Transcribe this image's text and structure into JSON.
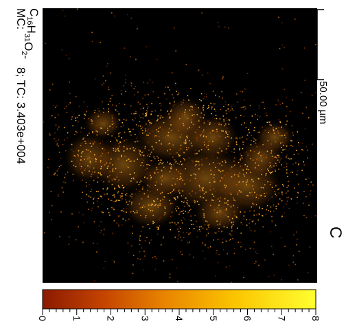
{
  "image": {
    "formula_base": "C",
    "formula_parts": [
      {
        "text": "C",
        "sub": "16"
      },
      {
        "text": "H",
        "sub": "31"
      },
      {
        "text": "O",
        "sub": "2"
      }
    ],
    "formula_charge": "-",
    "mc_label": "MC:",
    "mc_value": "8; TC: 3.403e+004",
    "scalebar_label": "50.00 µm",
    "panel_letter": "C"
  },
  "colorbar": {
    "ticks": [
      "0",
      "1",
      "2",
      "3",
      "4",
      "5",
      "6",
      "7",
      "8"
    ],
    "colors": [
      "#8b1a00",
      "#b83a00",
      "#e06a00",
      "#f5a000",
      "#ffd200",
      "#ffff3a"
    ]
  },
  "heatmap": {
    "background": "#000000",
    "hot_color": "#d98a1a"
  }
}
